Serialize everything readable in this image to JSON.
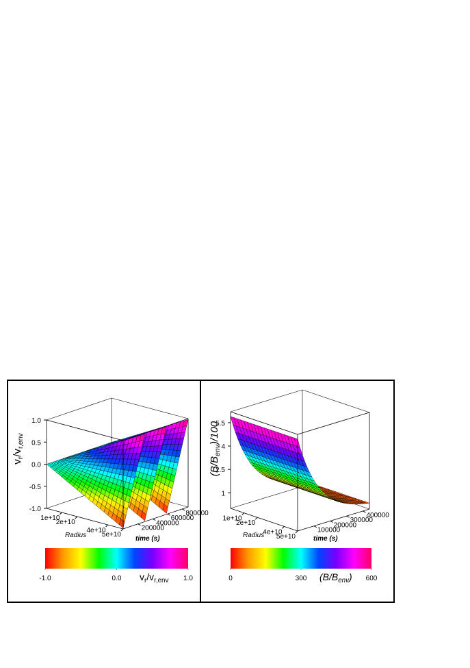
{
  "chart_data": [
    {
      "type": "surface",
      "zlabel": [
        "v",
        "r",
        "/v",
        "r,env"
      ],
      "zlim": [
        -1.0,
        1.0
      ],
      "zticks": [
        {
          "value": 1,
          "label": "1.0"
        },
        {
          "value": 0.5,
          "label": "0.5"
        },
        {
          "value": 0,
          "label": "0.0"
        },
        {
          "value": -0.5,
          "label": "-0.5"
        },
        {
          "value": -1,
          "label": "-1.0"
        }
      ],
      "xlabel": "Radius",
      "xlim": [
        0,
        50000000000
      ],
      "xticks": [
        {
          "value": 10000000000,
          "label": "1e+10"
        },
        {
          "value": 20000000000,
          "label": "2e+10"
        },
        {
          "value": 40000000000,
          "label": "4e+10"
        },
        {
          "value": 50000000000,
          "label": "5e+10"
        }
      ],
      "ylabel": "time (s)",
      "ylim": [
        0,
        880000
      ],
      "yticks": [
        200000,
        400000,
        600000,
        800000
      ],
      "colorbar": {
        "label": [
          "v",
          "r",
          "/v",
          "r,env"
        ],
        "lim": [
          -1.0,
          1.0
        ],
        "ticks": [
          {
            "value": -1,
            "label": "-1.0"
          },
          {
            "value": 0,
            "label": "0.0"
          },
          {
            "value": 1,
            "label": "1.0"
          }
        ],
        "colormap": [
          "#ff0000",
          "#ff9900",
          "#ffff00",
          "#00ff00",
          "#00ffff",
          "#0044ff",
          "#7700ff",
          "#ff00ff",
          "#ff0066"
        ]
      }
    },
    {
      "type": "surface",
      "zlabel": [
        "(B/B",
        "env",
        ")/100"
      ],
      "zlim": [
        0,
        6.2
      ],
      "zticks": [
        5.5,
        4,
        2.5,
        1
      ],
      "xlabel": "Radius",
      "xlim": [
        0,
        50000000000
      ],
      "xticks": [
        {
          "value": 10000000000,
          "label": "1e+10"
        },
        {
          "value": 20000000000,
          "label": "2e+10"
        },
        {
          "value": 40000000000,
          "label": "4e+10"
        },
        {
          "value": 50000000000,
          "label": "5e+10"
        }
      ],
      "ylabel": "time (s)",
      "ylim": [
        0,
        440000
      ],
      "yticks": [
        100000,
        200000,
        300000,
        400000
      ],
      "colorbar": {
        "label": [
          "(B/B",
          "env",
          ")"
        ],
        "lim": [
          0,
          600
        ],
        "ticks": [
          0,
          300,
          600
        ],
        "colormap": [
          "#ff0000",
          "#ff9900",
          "#ffff00",
          "#00ff00",
          "#00ffff",
          "#0044ff",
          "#7700ff",
          "#ff00ff",
          "#ff0066"
        ]
      }
    }
  ]
}
